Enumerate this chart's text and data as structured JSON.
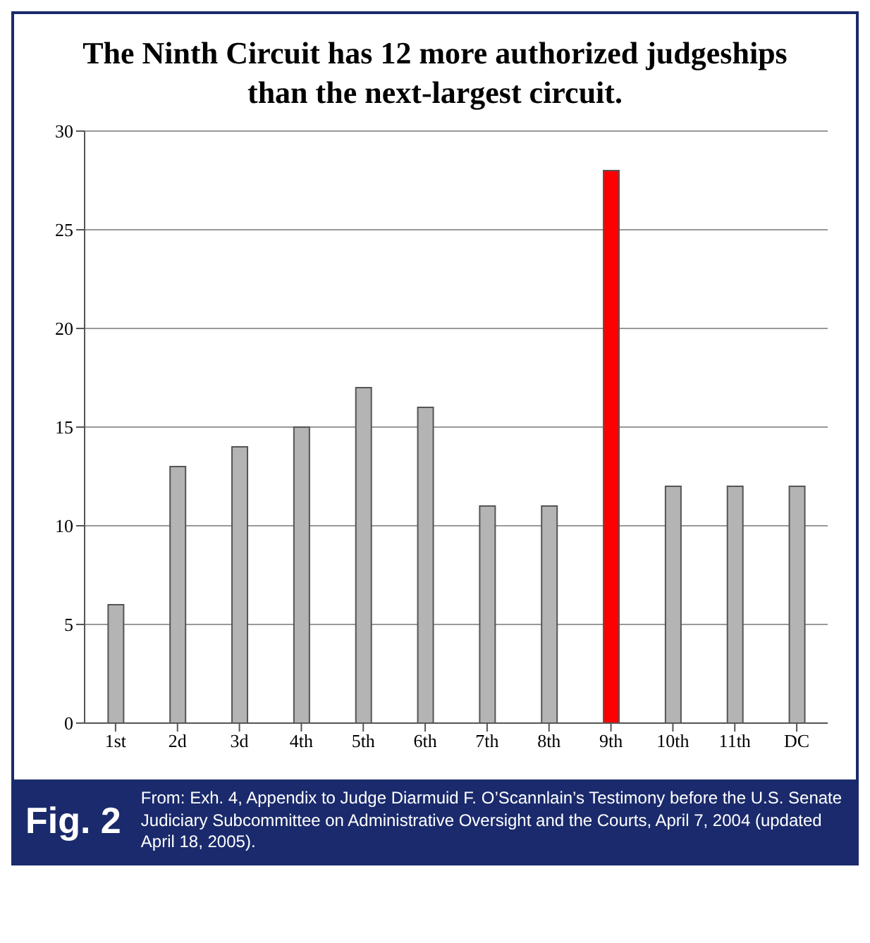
{
  "chart_data": {
    "type": "bar",
    "title": "The Ninth Circuit has 12 more authorized judgeships than the next-largest circuit.",
    "categories": [
      "1st",
      "2d",
      "3d",
      "4th",
      "5th",
      "6th",
      "7th",
      "8th",
      "9th",
      "10th",
      "11th",
      "DC"
    ],
    "values": [
      6,
      13,
      14,
      15,
      17,
      16,
      11,
      11,
      28,
      12,
      12,
      12
    ],
    "colors": [
      "#b4b4b4",
      "#b4b4b4",
      "#b4b4b4",
      "#b4b4b4",
      "#b4b4b4",
      "#b4b4b4",
      "#b4b4b4",
      "#b4b4b4",
      "#ff0000",
      "#b4b4b4",
      "#b4b4b4",
      "#b4b4b4"
    ],
    "ylim": [
      0,
      30
    ],
    "yticks": [
      0,
      5,
      10,
      15,
      20,
      25,
      30
    ],
    "grid": "y",
    "annotations": [
      "Fig. 2",
      "From: Exh. 4, Appendix to Judge Diarmuid F. O’Scannlain’s Testimony before the U.S. Senate Judiciary Subcommittee on Administrative Oversight and the Courts, April 7, 2004 (updated April 18, 2005)."
    ]
  }
}
